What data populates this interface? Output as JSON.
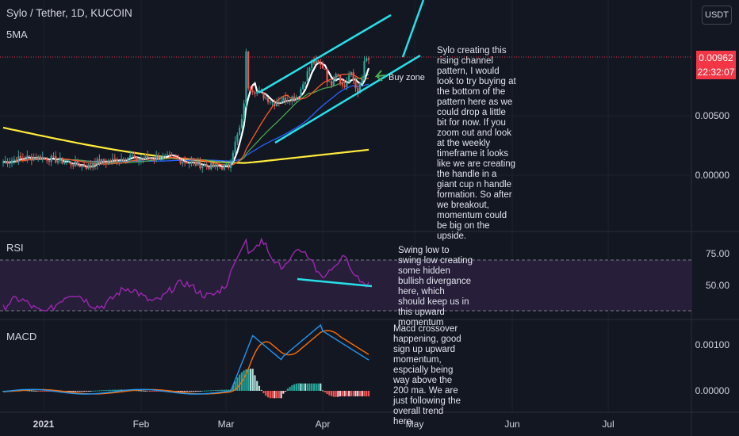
{
  "header": {
    "symbol_title": "Sylo / Tether, 1D, KUCOIN",
    "ma_label": "5MA",
    "currency_button": "USDT"
  },
  "price_tag": {
    "price": "0.00962",
    "countdown": "22:32:07"
  },
  "indicators": {
    "rsi_label": "RSI",
    "macd_label": "MACD"
  },
  "annotations": {
    "buy_zone": "Buy zone",
    "main_note": "Sylo creating this rising channel pattern, I would look to try buying at the bottom of the pattern here as we could drop a little bit for now. If you zoom out and look at the weekly timeframe it looks like we are creating the handle in a giant cup n handle formation. So after we breakout, momentum could be big on the upside.",
    "rsi_note": "Swing low to swing low creating some hidden bullish divergance here, which should keep us in this upward momentum",
    "macd_note": "Macd crossover happening, good sign up upward momentum, espcially being way above the 200 ma. We are just following the overall trend here."
  },
  "chart_data": [
    {
      "type": "candlestick",
      "title": "Sylo / Tether, 1D, KUCOIN",
      "y_ticks": [
        "0.00000",
        "0.00500"
      ],
      "ylim": [
        -0.0012,
        0.0135
      ],
      "x_ticks": [
        "2021",
        "Feb",
        "Mar",
        "Apr",
        "May",
        "Jun",
        "Jul"
      ],
      "series": [
        {
          "name": "5MA",
          "color": "#ffffff"
        }
      ],
      "annotation_lines": [
        "rising channel upper",
        "rising channel lower",
        "breakout projection"
      ],
      "last_price": 0.00962
    },
    {
      "type": "line",
      "name": "RSI",
      "y_ticks": [
        "50.00",
        "75.00"
      ],
      "ylim": [
        28,
        92
      ],
      "band": [
        30,
        70
      ],
      "color": "#9c27b0"
    },
    {
      "type": "bar",
      "name": "MACD",
      "y_ticks": [
        "0.00000",
        "0.00100"
      ],
      "ylim": [
        -0.00045,
        0.0014
      ],
      "series": [
        {
          "name": "MACD",
          "color": "#2962ff"
        },
        {
          "name": "Signal",
          "color": "#ff6d00"
        }
      ]
    }
  ]
}
